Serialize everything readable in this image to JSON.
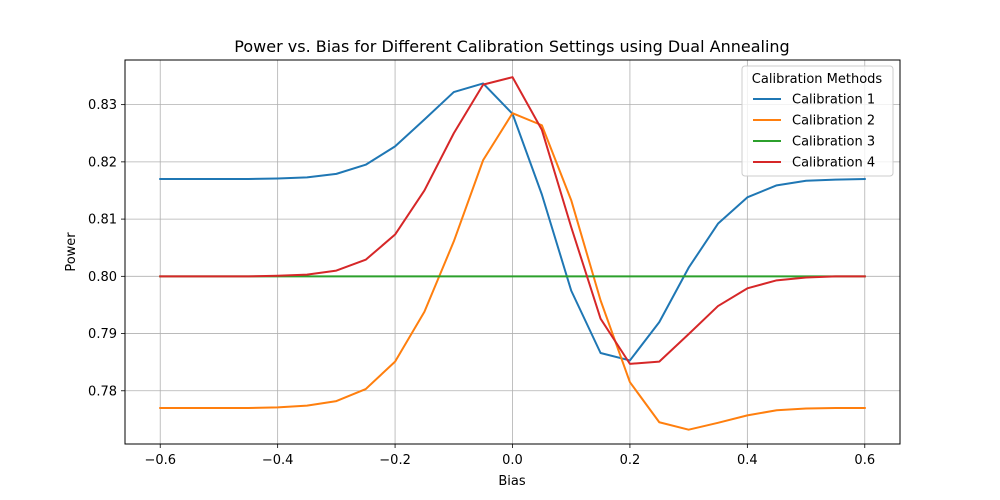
{
  "chart_data": {
    "type": "line",
    "title": "Power vs. Bias for Different Calibration Settings using Dual Annealing",
    "xlabel": "Bias",
    "ylabel": "Power",
    "xlim": [
      -0.66,
      0.66
    ],
    "ylim": [
      0.7707,
      0.8378
    ],
    "grid": true,
    "legend": {
      "title": "Calibration Methods",
      "placement": "top-right"
    },
    "x_ticks": [
      -0.6,
      -0.4,
      -0.2,
      0.0,
      0.2,
      0.4,
      0.6
    ],
    "x_tick_labels": [
      "−0.6",
      "−0.4",
      "−0.2",
      "0.0",
      "0.2",
      "0.4",
      "0.6"
    ],
    "y_ticks": [
      0.78,
      0.79,
      0.8,
      0.81,
      0.82,
      0.83
    ],
    "y_tick_labels": [
      "0.78",
      "0.79",
      "0.80",
      "0.81",
      "0.82",
      "0.83"
    ],
    "x": [
      -0.6,
      -0.55,
      -0.5,
      -0.45,
      -0.4,
      -0.35,
      -0.3,
      -0.25,
      -0.2,
      -0.15,
      -0.1,
      -0.05,
      0.0,
      0.05,
      0.1,
      0.15,
      0.2,
      0.25,
      0.3,
      0.35,
      0.4,
      0.45,
      0.5,
      0.55,
      0.6
    ],
    "series": [
      {
        "name": "Calibration 1",
        "color": "#1f77b4",
        "values": [
          0.817,
          0.817,
          0.817,
          0.817,
          0.8171,
          0.8173,
          0.8179,
          0.8195,
          0.8227,
          0.8274,
          0.8322,
          0.8337,
          0.8284,
          0.8143,
          0.7975,
          0.7866,
          0.7853,
          0.792,
          0.8015,
          0.8092,
          0.8138,
          0.8159,
          0.8167,
          0.8169,
          0.817
        ]
      },
      {
        "name": "Calibration 2",
        "color": "#ff7f0e",
        "values": [
          0.777,
          0.777,
          0.777,
          0.777,
          0.7771,
          0.7774,
          0.7782,
          0.7803,
          0.7851,
          0.7938,
          0.8061,
          0.8203,
          0.8285,
          0.8264,
          0.8133,
          0.7958,
          0.7815,
          0.7745,
          0.7732,
          0.7744,
          0.7757,
          0.7766,
          0.7769,
          0.777,
          0.777
        ]
      },
      {
        "name": "Calibration 3",
        "color": "#2ca02c",
        "values": [
          0.8,
          0.8,
          0.8,
          0.8,
          0.8,
          0.8,
          0.8,
          0.8,
          0.8,
          0.8,
          0.8,
          0.8,
          0.8,
          0.8,
          0.8,
          0.8,
          0.8,
          0.8,
          0.8,
          0.8,
          0.8,
          0.8,
          0.8,
          0.8,
          0.8
        ]
      },
      {
        "name": "Calibration 4",
        "color": "#d62728",
        "values": [
          0.8,
          0.8,
          0.8,
          0.8,
          0.8001,
          0.8003,
          0.801,
          0.8029,
          0.8073,
          0.815,
          0.825,
          0.8335,
          0.8348,
          0.8256,
          0.8086,
          0.7926,
          0.7847,
          0.7851,
          0.7899,
          0.7948,
          0.7979,
          0.7993,
          0.7998,
          0.8,
          0.8
        ]
      }
    ]
  }
}
